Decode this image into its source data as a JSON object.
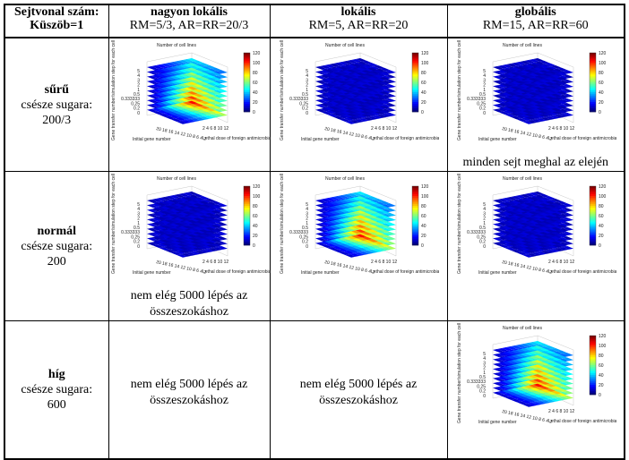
{
  "header": {
    "corner": {
      "line1": "Sejtvonal szám:",
      "line2": "Küszöb=1"
    },
    "columns": [
      {
        "title": "nagyon lokális",
        "params": "RM=5/3, AR=RR=20/3"
      },
      {
        "title": "lokális",
        "params": "RM=5, AR=RR=20"
      },
      {
        "title": "globális",
        "params": "RM=15, AR=RR=60"
      }
    ]
  },
  "rows": [
    {
      "name": "sűrű",
      "line2": "csésze sugara:",
      "line3": "200/3"
    },
    {
      "name": "normál",
      "line2": "csésze sugara:",
      "line3": "200"
    },
    {
      "name": "híg",
      "line2": "csésze sugara:",
      "line3": "600"
    }
  ],
  "plot_labels": {
    "title": "Number of cell lines",
    "ylabel": "Gene transfer number/simulation step for each cells",
    "xlabel_left": "Initial gene number",
    "xlabel_right": "Lethal dose of foreign antimicrobial",
    "x_ticks": "2 4 6 8 10 12",
    "init_ticks": "20 18 16 14 12 10 8 6 4 2",
    "y_ticks": [
      "5",
      "4",
      "3",
      "2",
      "1",
      "0.5",
      "0.333333",
      "0.25",
      "0.2",
      "0"
    ],
    "colorbar_ticks": [
      "120",
      "100",
      "80",
      "60",
      "40",
      "20",
      "0"
    ]
  },
  "cells": [
    [
      {
        "plot": "hot"
      },
      {
        "plot": "cold"
      },
      {
        "plot": "cold",
        "note": "minden sejt meghal az elején"
      }
    ],
    [
      {
        "plot": "cold",
        "note": "nem elég 5000 lépés az összeszokáshoz"
      },
      {
        "plot": "hot"
      },
      {
        "plot": "cold"
      }
    ],
    [
      {
        "note": "nem elég 5000 lépés az összeszokáshoz"
      },
      {
        "note": "nem elég 5000 lépés az összeszokáshoz"
      },
      {
        "plot": "hot"
      }
    ]
  ],
  "colors": {
    "cold": "#0a2e9a",
    "hot": "#d40000",
    "border": "#000000"
  }
}
